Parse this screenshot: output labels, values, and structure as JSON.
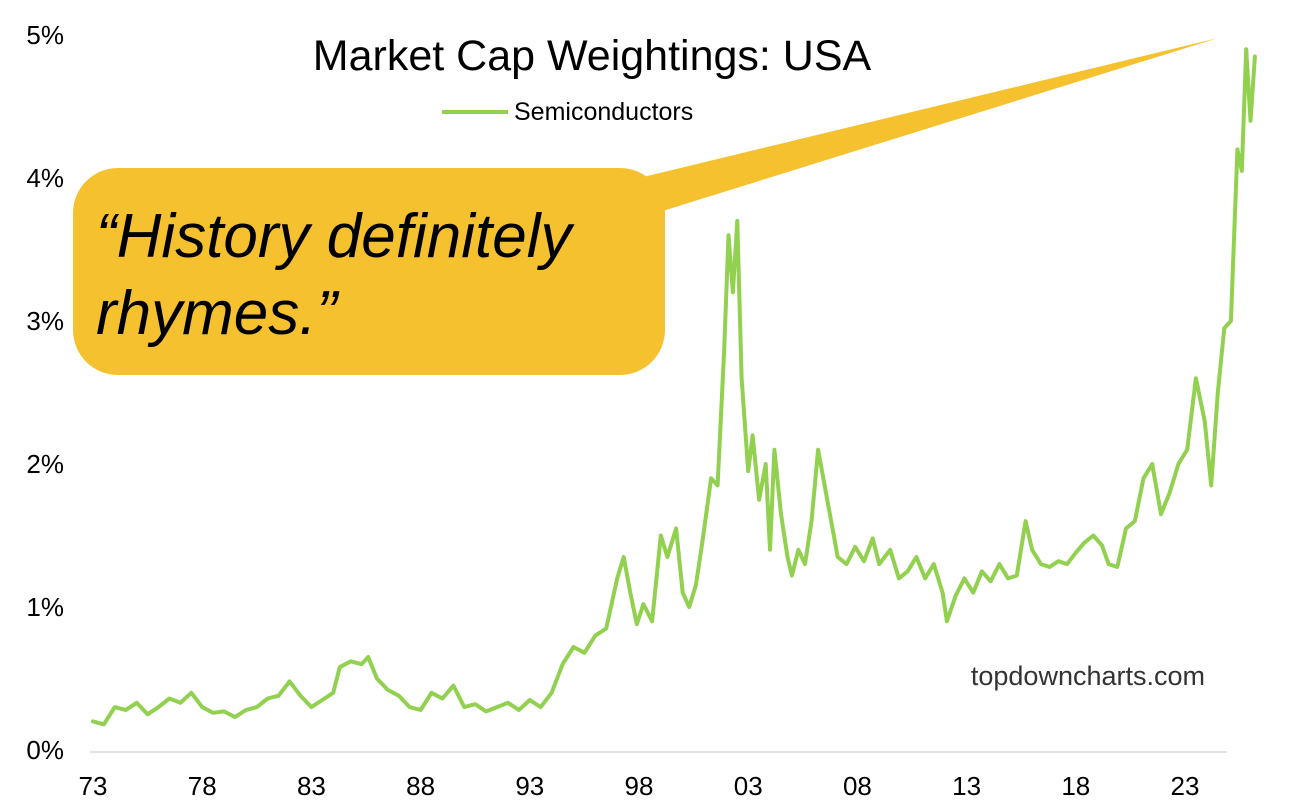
{
  "chart_data": {
    "type": "line",
    "title": "Market Cap Weightings: USA",
    "xlabel": "",
    "ylabel": "",
    "x_tick_labels": [
      "73",
      "78",
      "83",
      "88",
      "93",
      "98",
      "03",
      "08",
      "13",
      "18",
      "23"
    ],
    "y_tick_labels": [
      "0%",
      "1%",
      "2%",
      "3%",
      "4%",
      "5%"
    ],
    "xlim": [
      1973,
      2024.5
    ],
    "ylim": [
      0,
      5
    ],
    "grid": false,
    "legend_position": "top-center",
    "series": [
      {
        "name": "Semiconductors",
        "color": "#92d050",
        "points": [
          [
            1973.0,
            0.2
          ],
          [
            1973.5,
            0.18
          ],
          [
            1974.0,
            0.3
          ],
          [
            1974.5,
            0.28
          ],
          [
            1975.0,
            0.33
          ],
          [
            1975.5,
            0.25
          ],
          [
            1976.0,
            0.3
          ],
          [
            1976.5,
            0.36
          ],
          [
            1977.0,
            0.33
          ],
          [
            1977.5,
            0.4
          ],
          [
            1978.0,
            0.3
          ],
          [
            1978.5,
            0.26
          ],
          [
            1979.0,
            0.27
          ],
          [
            1979.5,
            0.23
          ],
          [
            1980.0,
            0.28
          ],
          [
            1980.5,
            0.3
          ],
          [
            1981.0,
            0.36
          ],
          [
            1981.5,
            0.38
          ],
          [
            1982.0,
            0.48
          ],
          [
            1982.5,
            0.38
          ],
          [
            1983.0,
            0.3
          ],
          [
            1983.5,
            0.35
          ],
          [
            1984.0,
            0.4
          ],
          [
            1984.3,
            0.58
          ],
          [
            1984.8,
            0.62
          ],
          [
            1985.3,
            0.6
          ],
          [
            1985.6,
            0.65
          ],
          [
            1986.0,
            0.5
          ],
          [
            1986.5,
            0.42
          ],
          [
            1987.0,
            0.38
          ],
          [
            1987.5,
            0.3
          ],
          [
            1988.0,
            0.28
          ],
          [
            1988.5,
            0.4
          ],
          [
            1989.0,
            0.36
          ],
          [
            1989.5,
            0.45
          ],
          [
            1990.0,
            0.3
          ],
          [
            1990.5,
            0.32
          ],
          [
            1991.0,
            0.27
          ],
          [
            1991.5,
            0.3
          ],
          [
            1992.0,
            0.33
          ],
          [
            1992.5,
            0.28
          ],
          [
            1993.0,
            0.35
          ],
          [
            1993.5,
            0.3
          ],
          [
            1994.0,
            0.4
          ],
          [
            1994.5,
            0.6
          ],
          [
            1995.0,
            0.72
          ],
          [
            1995.5,
            0.68
          ],
          [
            1996.0,
            0.8
          ],
          [
            1996.5,
            0.85
          ],
          [
            1997.0,
            1.2
          ],
          [
            1997.3,
            1.35
          ],
          [
            1997.6,
            1.1
          ],
          [
            1997.9,
            0.88
          ],
          [
            1998.2,
            1.02
          ],
          [
            1998.6,
            0.9
          ],
          [
            1999.0,
            1.5
          ],
          [
            1999.3,
            1.35
          ],
          [
            1999.7,
            1.55
          ],
          [
            2000.0,
            1.1
          ],
          [
            2000.3,
            1.0
          ],
          [
            2000.6,
            1.15
          ],
          [
            2000.9,
            1.45
          ],
          [
            2001.3,
            1.9
          ],
          [
            2001.6,
            1.85
          ],
          [
            2001.9,
            2.8
          ],
          [
            2002.1,
            3.6
          ],
          [
            2002.3,
            3.2
          ],
          [
            2002.5,
            3.7
          ],
          [
            2002.7,
            2.6
          ],
          [
            2003.0,
            1.95
          ],
          [
            2003.2,
            2.2
          ],
          [
            2003.5,
            1.75
          ],
          [
            2003.8,
            2.0
          ],
          [
            2004.0,
            1.4
          ],
          [
            2004.2,
            2.1
          ],
          [
            2004.5,
            1.65
          ],
          [
            2004.8,
            1.35
          ],
          [
            2005.0,
            1.22
          ],
          [
            2005.3,
            1.4
          ],
          [
            2005.6,
            1.3
          ],
          [
            2005.9,
            1.6
          ],
          [
            2006.2,
            2.1
          ],
          [
            2006.5,
            1.85
          ],
          [
            2006.8,
            1.6
          ],
          [
            2007.1,
            1.35
          ],
          [
            2007.5,
            1.3
          ],
          [
            2007.9,
            1.42
          ],
          [
            2008.3,
            1.32
          ],
          [
            2008.7,
            1.48
          ],
          [
            2009.0,
            1.3
          ],
          [
            2009.5,
            1.4
          ],
          [
            2009.9,
            1.2
          ],
          [
            2010.3,
            1.25
          ],
          [
            2010.7,
            1.35
          ],
          [
            2011.1,
            1.2
          ],
          [
            2011.5,
            1.3
          ],
          [
            2011.9,
            1.1
          ],
          [
            2012.1,
            0.9
          ],
          [
            2012.5,
            1.08
          ],
          [
            2012.9,
            1.2
          ],
          [
            2013.3,
            1.1
          ],
          [
            2013.7,
            1.25
          ],
          [
            2014.1,
            1.18
          ],
          [
            2014.5,
            1.3
          ],
          [
            2014.9,
            1.2
          ],
          [
            2015.3,
            1.22
          ],
          [
            2015.7,
            1.6
          ],
          [
            2016.0,
            1.4
          ],
          [
            2016.4,
            1.3
          ],
          [
            2016.8,
            1.28
          ],
          [
            2017.2,
            1.32
          ],
          [
            2017.6,
            1.3
          ],
          [
            2018.0,
            1.38
          ],
          [
            2018.4,
            1.45
          ],
          [
            2018.8,
            1.5
          ],
          [
            2019.2,
            1.43
          ],
          [
            2019.5,
            1.3
          ],
          [
            2019.9,
            1.28
          ],
          [
            2020.3,
            1.55
          ],
          [
            2020.7,
            1.6
          ],
          [
            2021.1,
            1.9
          ],
          [
            2021.5,
            2.0
          ],
          [
            2021.9,
            1.65
          ],
          [
            2022.3,
            1.8
          ],
          [
            2022.7,
            2.0
          ],
          [
            2023.1,
            2.1
          ],
          [
            2023.5,
            2.6
          ],
          [
            2023.9,
            2.3
          ],
          [
            2024.2,
            1.85
          ],
          [
            2024.5,
            2.5
          ],
          [
            2024.8,
            2.95
          ],
          [
            2025.1,
            3.0
          ],
          [
            2025.4,
            4.2
          ],
          [
            2025.6,
            4.05
          ],
          [
            2025.8,
            4.9
          ],
          [
            2026.0,
            4.4
          ],
          [
            2026.2,
            4.85
          ]
        ]
      }
    ],
    "annotations": [
      {
        "text": "“History definitely",
        "line": 1
      },
      {
        "text": "rhymes.”",
        "line": 2
      }
    ],
    "source_note": "topdowncharts.com"
  }
}
